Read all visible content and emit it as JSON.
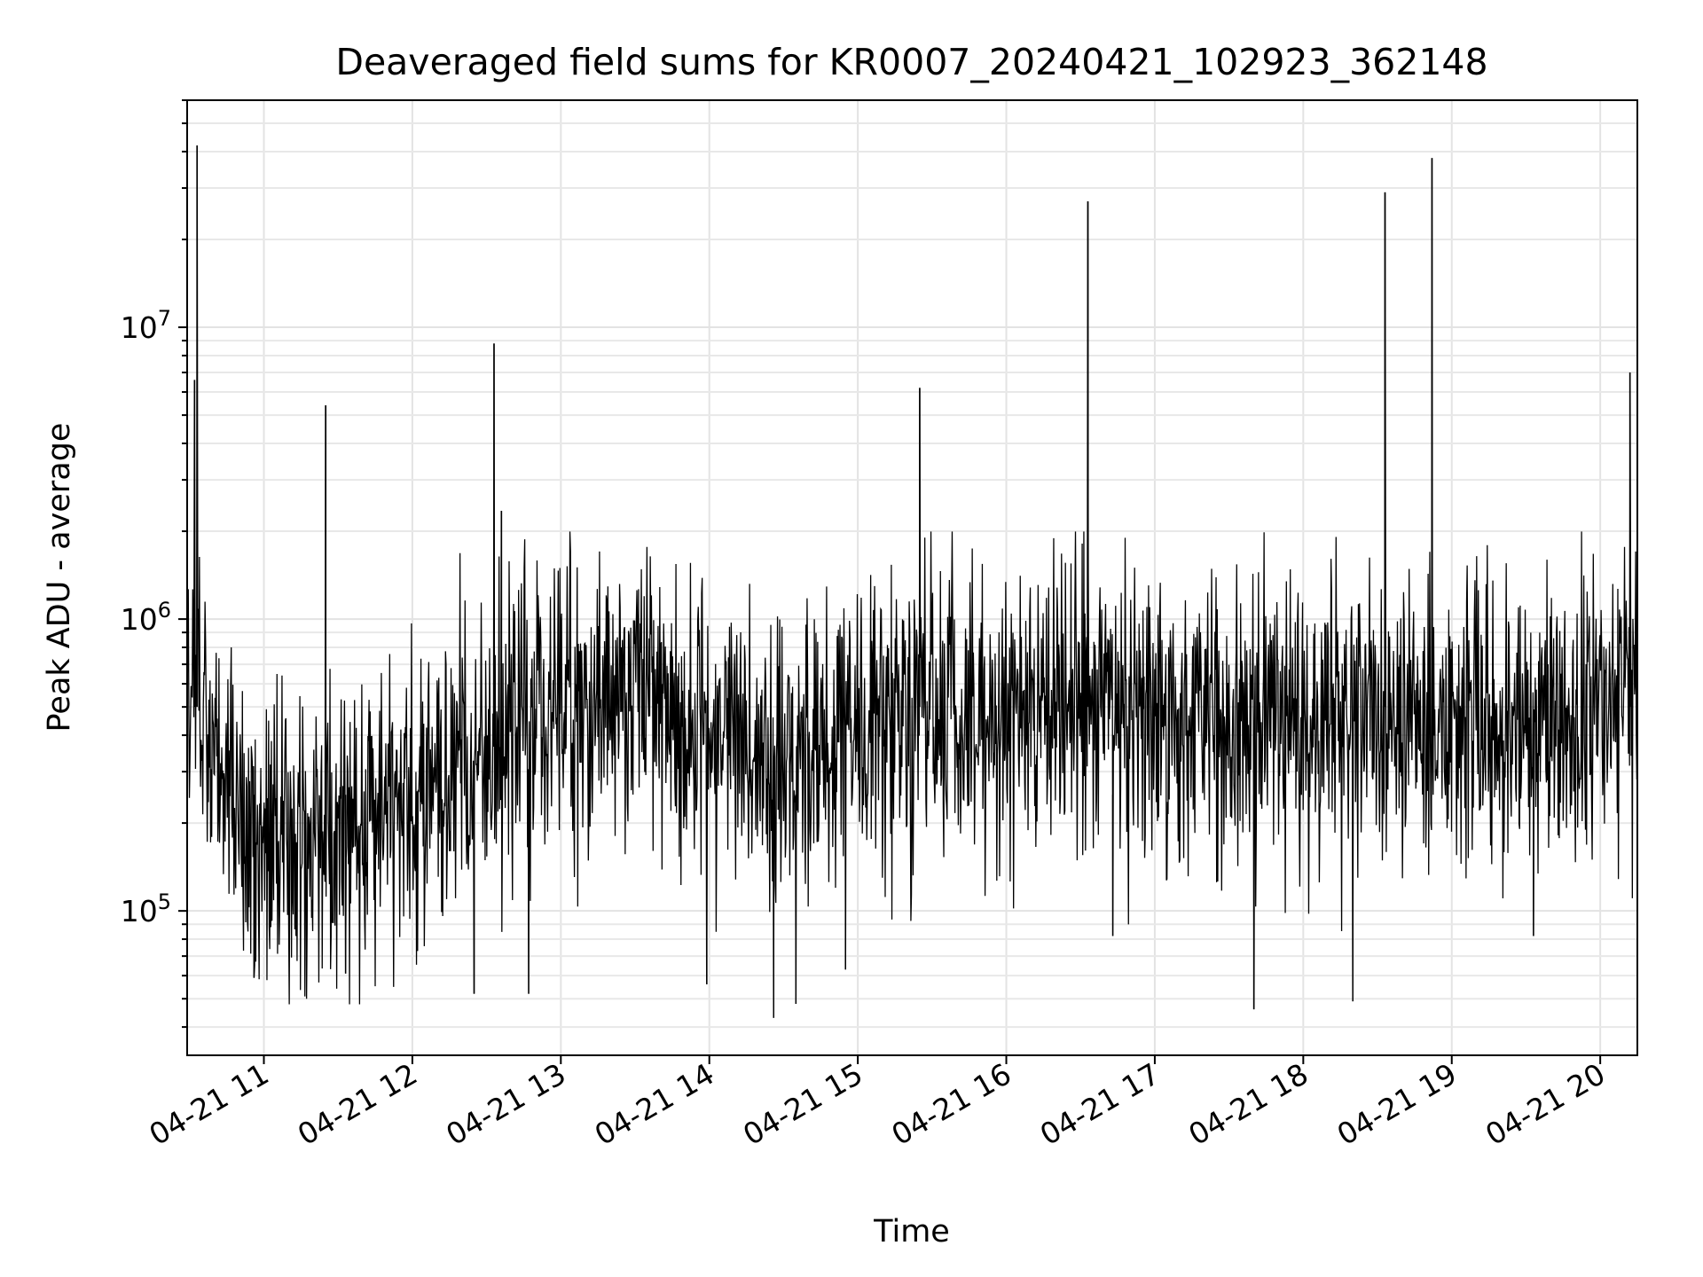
{
  "chart_data": {
    "type": "line",
    "title": "Deaveraged field sums for KR0007_20240421_102923_362148",
    "xlabel": "Time",
    "ylabel": "Peak ADU - average",
    "y_scale": "log",
    "x_range": [
      "2024-04-21 10:29",
      "2024-04-21 20:15"
    ],
    "ylim": [
      32000,
      60000000
    ],
    "x_tick_labels": [
      "04-21 11",
      "04-21 12",
      "04-21 13",
      "04-21 14",
      "04-21 15",
      "04-21 16",
      "04-21 17",
      "04-21 18",
      "04-21 19",
      "04-21 20"
    ],
    "y_tick_labels": [
      {
        "base": "10",
        "exp": "5"
      },
      {
        "base": "10",
        "exp": "6"
      },
      {
        "base": "10",
        "exp": "7"
      }
    ],
    "grid": true,
    "line_color": "#000000",
    "baseline_profile": [
      {
        "x": "2024-04-21 10:29",
        "y": 650000
      },
      {
        "x": "2024-04-21 10:40",
        "y": 350000
      },
      {
        "x": "2024-04-21 11:00",
        "y": 170000
      },
      {
        "x": "2024-04-21 11:30",
        "y": 190000
      },
      {
        "x": "2024-04-21 12:00",
        "y": 260000
      },
      {
        "x": "2024-04-21 12:30",
        "y": 350000
      },
      {
        "x": "2024-04-21 13:00",
        "y": 480000
      },
      {
        "x": "2024-04-21 13:30",
        "y": 560000
      },
      {
        "x": "2024-04-21 14:00",
        "y": 420000
      },
      {
        "x": "2024-04-21 14:30",
        "y": 330000
      },
      {
        "x": "2024-04-21 15:00",
        "y": 400000
      },
      {
        "x": "2024-04-21 15:30",
        "y": 440000
      },
      {
        "x": "2024-04-21 16:00",
        "y": 470000
      },
      {
        "x": "2024-04-21 16:30",
        "y": 500000
      },
      {
        "x": "2024-04-21 17:00",
        "y": 430000
      },
      {
        "x": "2024-04-21 17:30",
        "y": 420000
      },
      {
        "x": "2024-04-21 18:00",
        "y": 440000
      },
      {
        "x": "2024-04-21 18:30",
        "y": 480000
      },
      {
        "x": "2024-04-21 19:00",
        "y": 420000
      },
      {
        "x": "2024-04-21 19:30",
        "y": 460000
      },
      {
        "x": "2024-04-21 20:00",
        "y": 500000
      },
      {
        "x": "2024-04-21 20:15",
        "y": 600000
      }
    ],
    "peaks": [
      {
        "x": "2024-04-21 10:33",
        "y": 42000000
      },
      {
        "x": "2024-04-21 10:32",
        "y": 6600000
      },
      {
        "x": "2024-04-21 11:25",
        "y": 5400000
      },
      {
        "x": "2024-04-21 12:33",
        "y": 8800000
      },
      {
        "x": "2024-04-21 12:36",
        "y": 2350000
      },
      {
        "x": "2024-04-21 15:25",
        "y": 6200000
      },
      {
        "x": "2024-04-21 16:33",
        "y": 27000000
      },
      {
        "x": "2024-04-21 18:33",
        "y": 29000000
      },
      {
        "x": "2024-04-21 18:52",
        "y": 38000000
      },
      {
        "x": "2024-04-21 20:12",
        "y": 7000000
      }
    ],
    "dips": [
      {
        "x": "2024-04-21 10:56",
        "y": 59000
      },
      {
        "x": "2024-04-21 11:33",
        "y": 61000
      },
      {
        "x": "2024-04-21 12:25",
        "y": 52000
      },
      {
        "x": "2024-04-21 12:47",
        "y": 52000
      },
      {
        "x": "2024-04-21 13:59",
        "y": 56000
      },
      {
        "x": "2024-04-21 14:26",
        "y": 43000
      },
      {
        "x": "2024-04-21 14:35",
        "y": 48000
      },
      {
        "x": "2024-04-21 14:55",
        "y": 63000
      },
      {
        "x": "2024-04-21 16:43",
        "y": 82000
      },
      {
        "x": "2024-04-21 17:40",
        "y": 46000
      },
      {
        "x": "2024-04-21 18:20",
        "y": 49000
      },
      {
        "x": "2024-04-21 19:33",
        "y": 82000
      }
    ]
  }
}
